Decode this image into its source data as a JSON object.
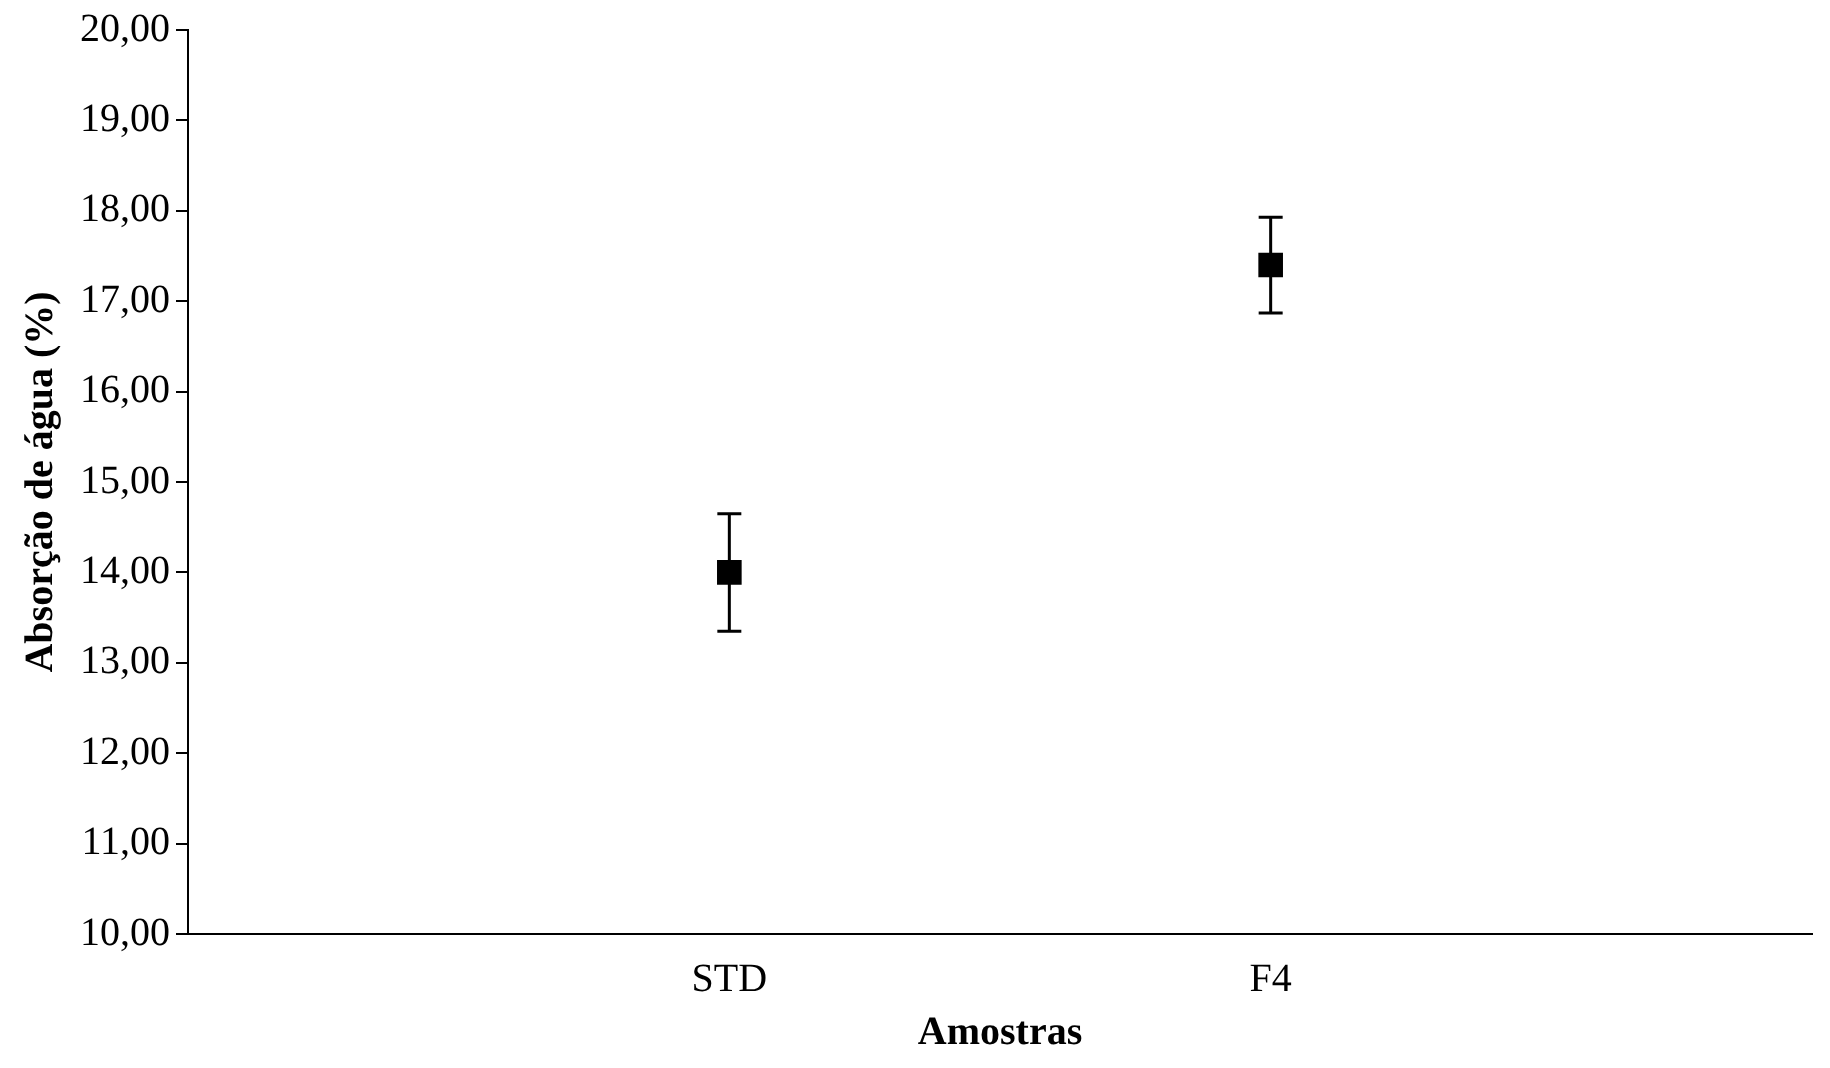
{
  "chart_data": {
    "type": "scatter",
    "xlabel": "Amostras",
    "ylabel": "Absorção de água (%)",
    "categories": [
      "STD",
      "F4"
    ],
    "series": [
      {
        "color": "#000000",
        "values": [
          14.0,
          17.4
        ],
        "errors": [
          0.65,
          0.53
        ]
      }
    ],
    "ylim": [
      10,
      20
    ],
    "yticks": [
      {
        "value": 10,
        "label": "10,00"
      },
      {
        "value": 11,
        "label": "11,00"
      },
      {
        "value": 12,
        "label": "12,00"
      },
      {
        "value": 13,
        "label": "13,00"
      },
      {
        "value": 14,
        "label": "14,00"
      },
      {
        "value": 15,
        "label": "15,00"
      },
      {
        "value": 16,
        "label": "16,00"
      },
      {
        "value": 17,
        "label": "17,00"
      },
      {
        "value": 18,
        "label": "18,00"
      },
      {
        "value": 19,
        "label": "19,00"
      },
      {
        "value": 20,
        "label": "20,00"
      }
    ],
    "grid": false,
    "legend": false,
    "marker": "square"
  }
}
